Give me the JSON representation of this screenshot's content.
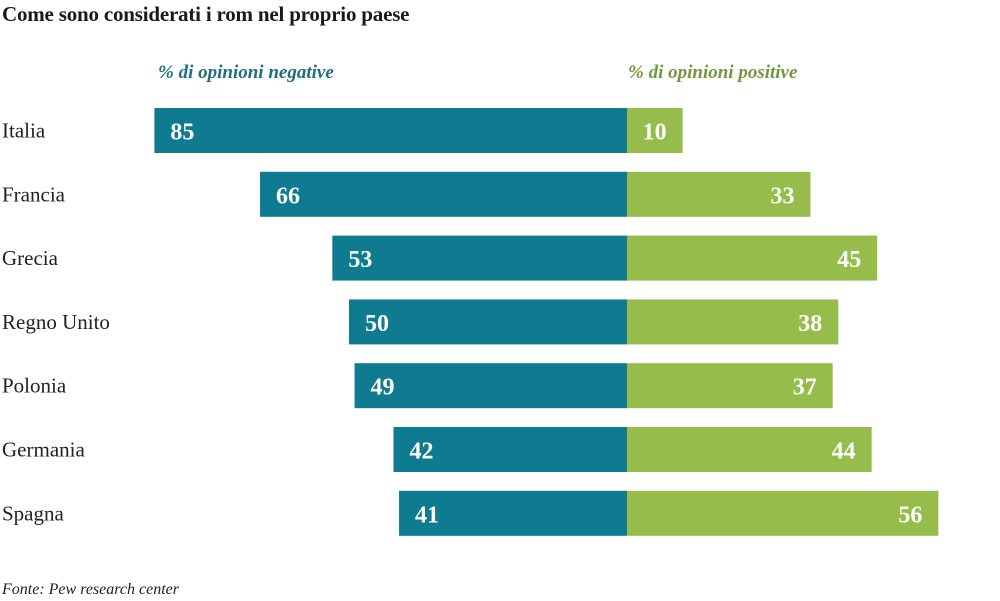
{
  "chart_data": {
    "type": "bar",
    "title": "Come sono considerati i rom nel proprio paese",
    "categories": [
      "Italia",
      "Francia",
      "Grecia",
      "Regno Unito",
      "Polonia",
      "Germania",
      "Spagna"
    ],
    "series": [
      {
        "name": "% di opinioni negative",
        "values": [
          85,
          66,
          53,
          50,
          49,
          42,
          41
        ],
        "color": "#0f7b91"
      },
      {
        "name": "% di opinioni positive",
        "values": [
          10,
          33,
          45,
          38,
          37,
          44,
          56
        ],
        "color": "#96bd4b"
      }
    ],
    "orientation": "horizontal-diverging",
    "xlabel": "",
    "ylabel": "",
    "source": "Fonte: Pew research center"
  }
}
